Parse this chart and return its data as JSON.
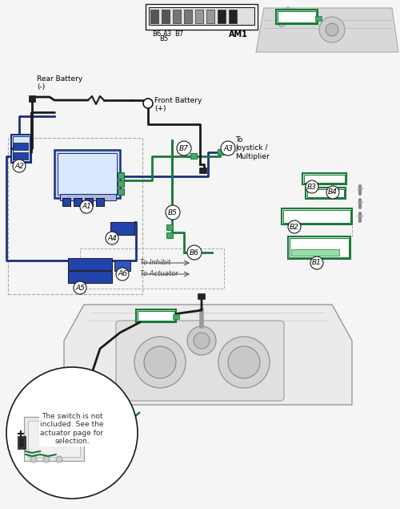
{
  "bg_color": "#f5f5f5",
  "line_black": "#1a1a1a",
  "line_blue": "#1a3080",
  "line_green": "#1a7a3a",
  "blue_fill": "#2244aa",
  "blue_light": "#aabbdd",
  "green_fill": "#44aa66",
  "green_light": "#99ddaa",
  "gray_fill": "#cccccc",
  "gray_light": "#e8e8e8",
  "gray_dark": "#888888",
  "white": "#ffffff",
  "note_text": "The switch is not\nincluded. See the\nactuator page for\nselection.",
  "to_joystick": "To\nJoystick /\nMultiplier",
  "to_inhibit": "To Inhibit",
  "to_actuator": "To Actuator",
  "rear_battery": "Rear Battery\n(-)",
  "front_battery": "Front Battery\n(+)"
}
